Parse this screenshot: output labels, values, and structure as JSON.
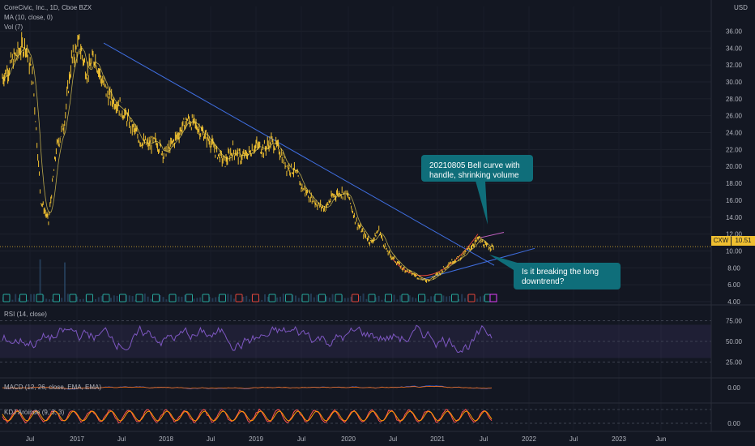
{
  "header": {
    "symbol_line": "CoreCivic, Inc., 1D, Cboe BZX",
    "ma_label": "MA (10, close, 0)",
    "vol_label": "Vol (7)",
    "currency": "USD"
  },
  "price_tag": {
    "symbol": "CXW",
    "value": "10.51"
  },
  "annotations": [
    {
      "id": "bell",
      "text": "20210805 Bell curve with handle, shrinking volume"
    },
    {
      "id": "break",
      "text": "Is it breaking the long downtrend?"
    }
  ],
  "panes": {
    "rsi_label": "RSI (14, close)",
    "macd_label": "MACD (12, 26, close, EMA, EMA)",
    "kdj_label": "KDJ Aroinde (9, 3, 3)"
  },
  "colors": {
    "background": "#131722",
    "candles": "#f0c030",
    "ma": "#ffe45c",
    "trendline": "#3f6ee0",
    "rsi": "#7e57c2",
    "callout": "#0f6e7a",
    "macd": "#2962ff",
    "macd_signal": "#ff6d00",
    "kdj_k": "#ff5252",
    "kdj_d": "#ff9800"
  },
  "chart_data": [
    {
      "type": "line",
      "subtype": "candlestick",
      "title": "CoreCivic, Inc., 1D, Cboe BZX",
      "x": [
        "2016-04",
        "2016-05",
        "2016-06",
        "2016-07",
        "2016-08",
        "2016-09",
        "2016-10",
        "2016-11",
        "2016-12",
        "2017-01",
        "2017-02",
        "2017-03",
        "2017-04",
        "2017-05",
        "2017-06",
        "2017-07",
        "2017-08",
        "2017-09",
        "2017-10",
        "2017-11",
        "2017-12",
        "2018-01",
        "2018-02",
        "2018-03",
        "2018-04",
        "2018-05",
        "2018-06",
        "2018-07",
        "2018-08",
        "2018-09",
        "2018-10",
        "2018-11",
        "2018-12",
        "2019-01",
        "2019-02",
        "2019-03",
        "2019-04",
        "2019-05",
        "2019-06",
        "2019-07",
        "2019-08",
        "2019-09",
        "2019-10",
        "2019-11",
        "2019-12",
        "2020-01",
        "2020-02",
        "2020-03",
        "2020-04",
        "2020-05",
        "2020-06",
        "2020-07",
        "2020-08",
        "2020-09",
        "2020-10",
        "2020-11",
        "2020-12",
        "2021-01",
        "2021-02",
        "2021-03",
        "2021-04",
        "2021-05",
        "2021-06",
        "2021-07",
        "2021-08"
      ],
      "series": [
        {
          "values": [
            30.5,
            32.0,
            33.5,
            34.5,
            30.0,
            16.0,
            13.5,
            22.0,
            25.0,
            32.5,
            34.5,
            31.0,
            33.0,
            30.0,
            28.0,
            27.5,
            26.0,
            24.5,
            23.0,
            22.5,
            23.0,
            21.5,
            22.5,
            24.0,
            25.5,
            25.0,
            24.0,
            23.0,
            21.5,
            20.5,
            22.0,
            21.0,
            21.5,
            22.5,
            22.0,
            23.0,
            22.0,
            20.0,
            19.5,
            17.5,
            16.5,
            15.5,
            15.0,
            16.5,
            17.0,
            16.5,
            13.5,
            12.0,
            11.0,
            12.5,
            10.0,
            9.0,
            8.0,
            7.5,
            7.0,
            6.5,
            6.8,
            7.5,
            8.5,
            9.0,
            9.5,
            10.5,
            11.5,
            10.5,
            10.51
          ]
        }
      ],
      "ylim": [
        4,
        37
      ],
      "y_ticks": [
        4.0,
        6.0,
        8.0,
        10.0,
        12.0,
        14.0,
        16.0,
        18.0,
        20.0,
        22.0,
        24.0,
        26.0,
        28.0,
        30.0,
        32.0,
        34.0,
        36.0
      ],
      "x_ticks": [
        "Jul",
        "2017",
        "Jul",
        "2018",
        "Jul",
        "2019",
        "Jul",
        "2020",
        "Jul",
        "2021",
        "Jul",
        "2022",
        "Jul",
        "2023",
        "Jun"
      ],
      "last_price": 10.51,
      "grid": true
    },
    {
      "type": "line",
      "title": "RSI (14, close)",
      "ylim": [
        10,
        90
      ],
      "y_ticks": [
        25.0,
        50.0,
        75.0
      ],
      "bands": [
        30,
        70
      ]
    },
    {
      "type": "line",
      "title": "MACD (12, 26, close, EMA, EMA)",
      "y_ticks": [
        0.0
      ]
    },
    {
      "type": "line",
      "title": "KDJ Aroinde (9, 3, 3)",
      "y_ticks": [
        0.0
      ]
    }
  ]
}
